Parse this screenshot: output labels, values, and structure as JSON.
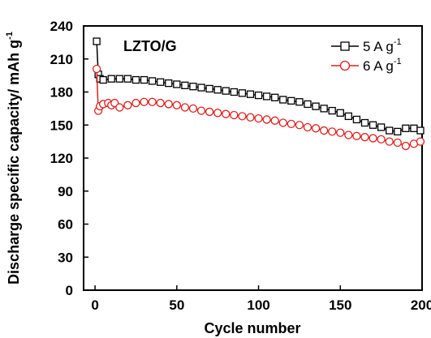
{
  "chart_data": {
    "type": "line",
    "title": "",
    "annotation": "LZTO/G",
    "xlabel": "Cycle number",
    "ylabel": {
      "main": "Discharge specific capacity/ mAh g",
      "superscript": "-1"
    },
    "xlim": [
      -7,
      200
    ],
    "ylim": [
      0,
      240
    ],
    "xticks": [
      0,
      50,
      100,
      150,
      200
    ],
    "yticks": [
      0,
      30,
      60,
      90,
      120,
      150,
      180,
      210,
      240
    ],
    "grid": false,
    "legend_position": "top-right",
    "series": [
      {
        "name": "5 A g",
        "name_superscript": "-1",
        "color": "#000000",
        "marker": "square",
        "x": [
          1,
          2,
          3,
          5,
          10,
          15,
          20,
          25,
          30,
          35,
          40,
          45,
          50,
          55,
          60,
          65,
          70,
          75,
          80,
          85,
          90,
          95,
          100,
          105,
          110,
          115,
          120,
          125,
          130,
          135,
          140,
          145,
          150,
          155,
          160,
          165,
          170,
          175,
          180,
          185,
          190,
          195,
          199
        ],
        "values": [
          226,
          196,
          192,
          191,
          192,
          192,
          192,
          191,
          191,
          190,
          189,
          188,
          187,
          186,
          185,
          184,
          183,
          182,
          181,
          180,
          179,
          178,
          177,
          176,
          175,
          173,
          172,
          171,
          169,
          167,
          165,
          163,
          161,
          158,
          155,
          152,
          150,
          148,
          145,
          144,
          147,
          147,
          145
        ]
      },
      {
        "name": "6 A g",
        "name_superscript": "-1",
        "color": "#e0201e",
        "marker": "circle",
        "x": [
          1,
          2,
          3,
          5,
          8,
          10,
          12,
          15,
          20,
          25,
          30,
          35,
          40,
          45,
          50,
          55,
          60,
          65,
          70,
          75,
          80,
          85,
          90,
          95,
          100,
          105,
          110,
          115,
          120,
          125,
          130,
          135,
          140,
          145,
          150,
          155,
          160,
          165,
          170,
          175,
          180,
          185,
          190,
          195,
          199
        ],
        "values": [
          201,
          163,
          167,
          169,
          170,
          168,
          170,
          166,
          168,
          170,
          171,
          171,
          170,
          169,
          168,
          166,
          165,
          163,
          162,
          161,
          160,
          159,
          158,
          157,
          156,
          155,
          154,
          152,
          151,
          150,
          148,
          147,
          145,
          144,
          143,
          141,
          140,
          139,
          138,
          137,
          135,
          134,
          131,
          133,
          135
        ]
      }
    ]
  }
}
